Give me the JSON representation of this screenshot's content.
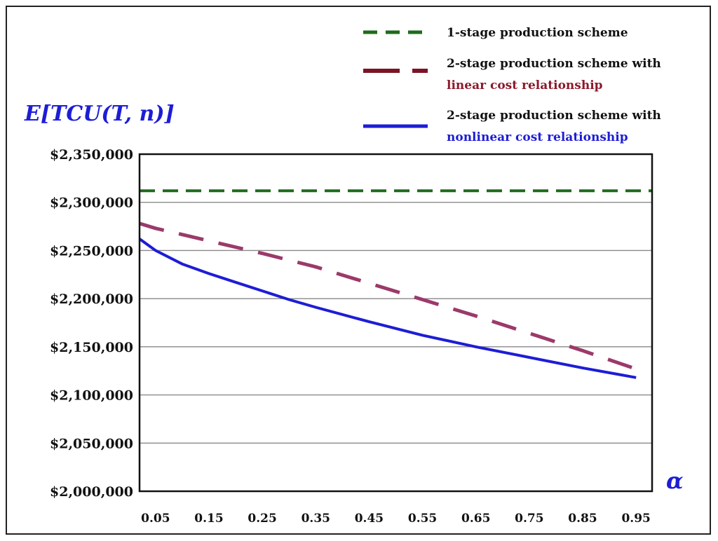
{
  "chart_data": {
    "type": "line",
    "ylabel": "E[TCU(T, n)]",
    "xlabel": "α",
    "ylim": [
      2000000,
      2350000
    ],
    "xlim": [
      0.02,
      0.98
    ],
    "y_ticks": [
      2000000,
      2050000,
      2100000,
      2150000,
      2200000,
      2250000,
      2300000,
      2350000
    ],
    "y_tick_labels": [
      "$2,000,000",
      "$2,050,000",
      "$2,100,000",
      "$2,150,000",
      "$2,200,000",
      "$2,250,000",
      "$2,300,000",
      "$2,350,000"
    ],
    "x_ticks": [
      0.05,
      0.15,
      0.25,
      0.35,
      0.45,
      0.55,
      0.65,
      0.75,
      0.85,
      0.95
    ],
    "x_tick_labels": [
      "0.05",
      "0.15",
      "0.25",
      "0.35",
      "0.45",
      "0.55",
      "0.65",
      "0.75",
      "0.85",
      "0.95"
    ],
    "grid": "horizontal",
    "legend_position": "top-right",
    "series": [
      {
        "name": "1-stage production scheme",
        "legend_lines": [
          "1-stage production scheme"
        ],
        "legend_line_colors": [
          "#111111"
        ],
        "color": "#1d6b1d",
        "style": "dashed",
        "x": [
          0.02,
          0.98
        ],
        "y": [
          2312000,
          2312000
        ]
      },
      {
        "name": "2-stage production scheme with linear cost relationship",
        "legend_lines": [
          "2-stage production scheme with",
          "linear cost relationship"
        ],
        "legend_line_colors": [
          "#111111",
          "#8b1a2b"
        ],
        "color": "#9b3a6a",
        "legend_color": "#7a1426",
        "style": "long-dash",
        "x": [
          0.02,
          0.05,
          0.15,
          0.25,
          0.35,
          0.45,
          0.55,
          0.65,
          0.75,
          0.85,
          0.95
        ],
        "y": [
          2278000,
          2273000,
          2260000,
          2247000,
          2233000,
          2216000,
          2199000,
          2182000,
          2164000,
          2146000,
          2127000
        ]
      },
      {
        "name": "2-stage production scheme with nonlinear cost relationship",
        "legend_lines": [
          "2-stage production scheme with",
          "nonlinear cost relationship"
        ],
        "legend_line_colors": [
          "#111111",
          "#1d1dd6"
        ],
        "color": "#1d1dd6",
        "style": "solid",
        "x": [
          0.02,
          0.05,
          0.1,
          0.15,
          0.2,
          0.25,
          0.3,
          0.35,
          0.45,
          0.55,
          0.65,
          0.75,
          0.85,
          0.95
        ],
        "y": [
          2262000,
          2250000,
          2236000,
          2226000,
          2217000,
          2208000,
          2199000,
          2191000,
          2176000,
          2162000,
          2150000,
          2139000,
          2128000,
          2118000
        ]
      }
    ]
  }
}
